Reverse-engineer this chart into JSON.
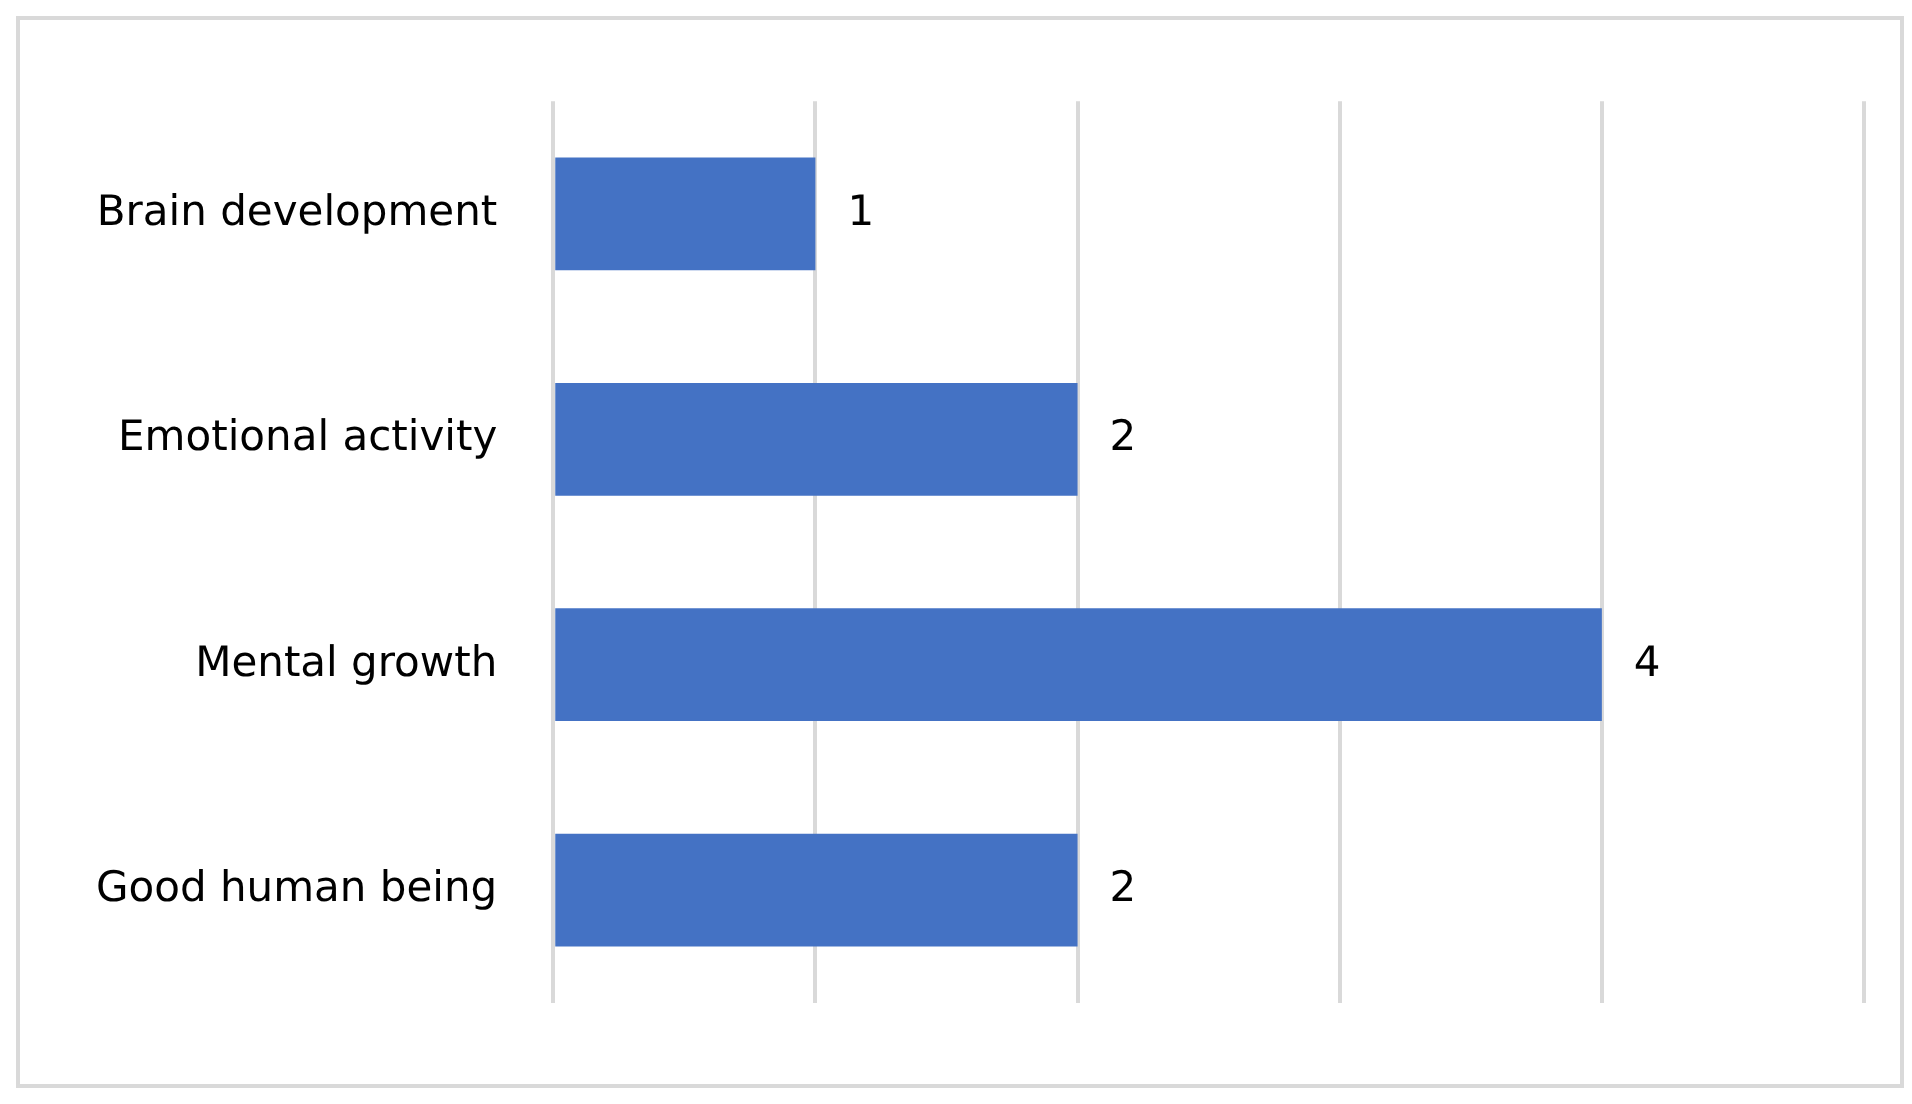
{
  "chart_data": {
    "type": "bar",
    "orientation": "horizontal",
    "categories": [
      "Brain development",
      "Emotional activity",
      "Mental growth",
      "Good human being"
    ],
    "values": [
      1,
      2,
      4,
      2
    ],
    "color": "#4472c4",
    "xlim": [
      0,
      5
    ],
    "xticks": [
      {
        "value": 0,
        "label": null
      },
      {
        "value": 1,
        "label": null
      },
      {
        "value": 2,
        "label": null
      },
      {
        "value": 3,
        "label": null
      },
      {
        "value": 4,
        "label": null
      },
      {
        "value": 5,
        "label": null
      }
    ],
    "grid": "x",
    "tick_labels": "y",
    "data_labels": true,
    "legend": false
  }
}
